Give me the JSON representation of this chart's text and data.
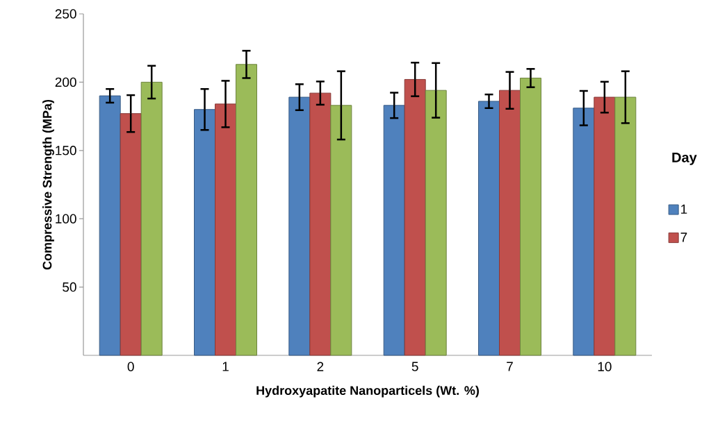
{
  "chart_data": {
    "type": "bar",
    "xlabel": "Hydroxyapatite Nanoparticels (Wt. %)",
    "ylabel": "Compressive Strength (MPa)",
    "legend_title": "Day",
    "categories": [
      "0",
      "1",
      "2",
      "5",
      "7",
      "10"
    ],
    "series": [
      {
        "name": "1",
        "color": "#4f81bd",
        "values": [
          190,
          180,
          189,
          183,
          186,
          181
        ],
        "errors": [
          5,
          15,
          9.5,
          9.3,
          5,
          12.6
        ]
      },
      {
        "name": "7",
        "color": "#c0504d",
        "values": [
          177,
          184,
          192,
          202,
          194,
          189
        ],
        "errors": [
          13.5,
          17,
          8.5,
          12.3,
          13.5,
          11.3
        ]
      },
      {
        "color": "#9bbb59",
        "values": [
          200,
          213,
          183,
          194,
          203,
          189
        ],
        "errors": [
          12,
          10,
          25,
          20,
          6.7,
          19
        ]
      }
    ],
    "ylim": [
      0,
      250
    ],
    "yticks": [
      50,
      100,
      150,
      200,
      250
    ],
    "grid": false,
    "legend": "right"
  }
}
